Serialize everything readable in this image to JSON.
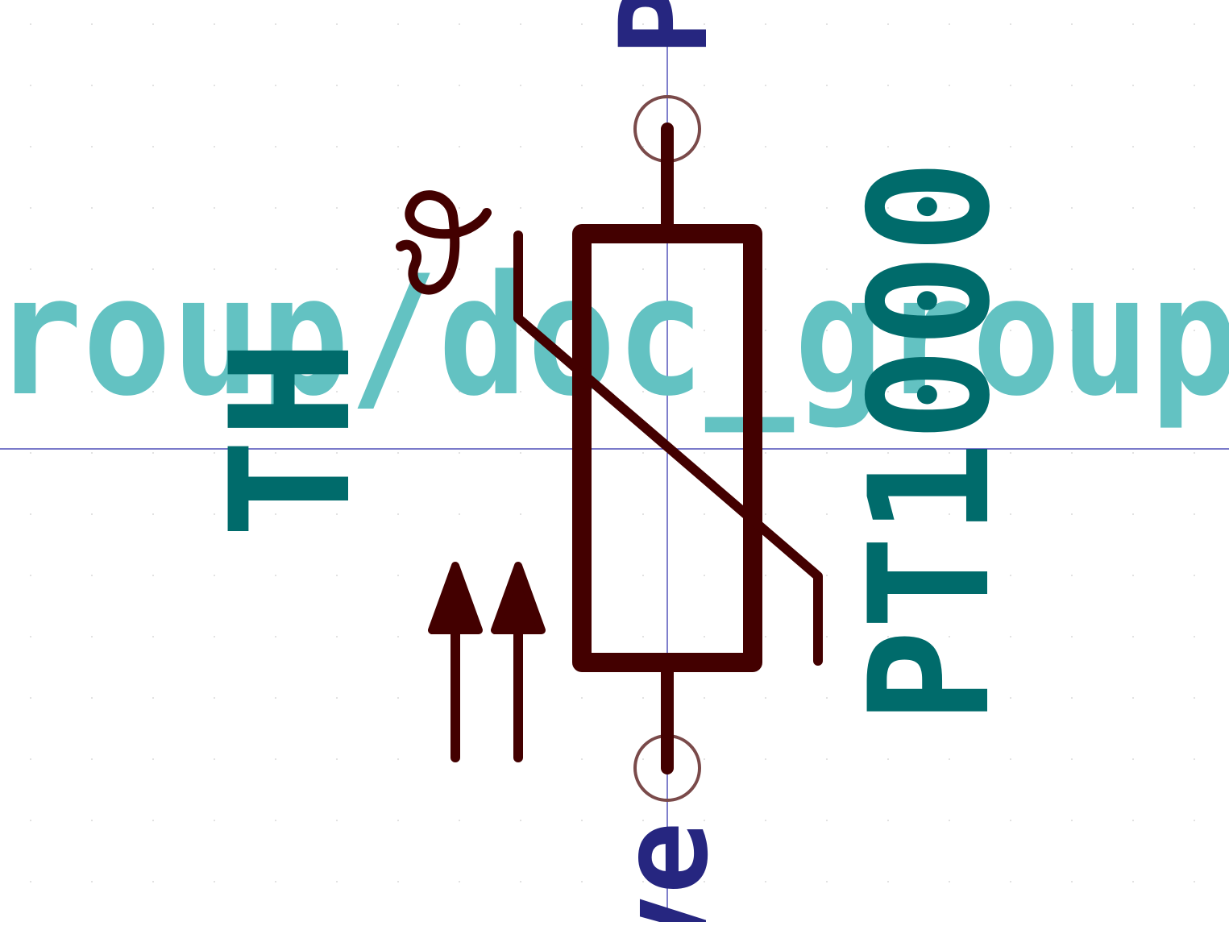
{
  "canvas": {
    "background": "#ffffff",
    "grid_dots": true
  },
  "colors": {
    "body": "#430000",
    "pin_circle": "#7a4a4a",
    "field_text": "#006b6b",
    "group_text": "#63c2c2",
    "pin_text": "#262680",
    "crosshair": "#2a2aaa"
  },
  "labels": {
    "group_watermark": "roup/doc_group",
    "reference": "TH",
    "value": "PT1000",
    "pin_top_fragment": "P",
    "pin_bottom_fragment": "ve"
  },
  "icons": {
    "theta_symbol": "theta-temperature-icon",
    "arrows": "double-up-arrow-icon"
  }
}
